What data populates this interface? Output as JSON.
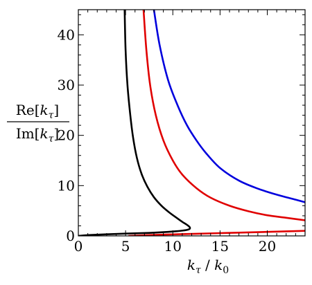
{
  "chart_data": {
    "type": "line",
    "xlabel": {
      "main": "k",
      "sub": "τ",
      "sep": " / ",
      "main2": "k",
      "sub2": "0"
    },
    "ylabel": {
      "num_pre": "Re[",
      "num_main": "k",
      "num_sub": "τ",
      "num_post": "]",
      "den_pre": "Im[",
      "den_main": "k",
      "den_sub": "τ",
      "den_post": "]"
    },
    "xlim": [
      0,
      24
    ],
    "ylim": [
      0,
      45
    ],
    "xticks": [
      0,
      5,
      10,
      15,
      20
    ],
    "yticks": [
      0,
      10,
      20,
      30,
      40
    ],
    "xtick_labels": [
      "0",
      "5",
      "10",
      "15",
      "20"
    ],
    "ytick_labels": [
      "0",
      "10",
      "20",
      "30",
      "40"
    ],
    "grid": false,
    "series": [
      {
        "color": "#000000",
        "x": [
          4.9,
          5.0,
          5.2,
          5.5,
          5.8,
          6.2,
          6.7,
          7.3,
          8.0,
          8.8,
          9.6,
          10.4,
          11.0,
          11.5,
          11.8,
          11.7,
          11.0,
          9.5,
          7.5,
          5.0,
          3.0,
          1.5,
          0.5,
          0.0
        ],
        "y": [
          45,
          37,
          30,
          24,
          19.5,
          15.5,
          12.3,
          9.8,
          7.7,
          6.0,
          4.7,
          3.6,
          2.8,
          2.2,
          1.7,
          1.3,
          1.05,
          0.8,
          0.6,
          0.45,
          0.32,
          0.2,
          0.08,
          0.0
        ]
      },
      {
        "color": "#e00000",
        "x": [
          6.9,
          7.2,
          7.6,
          8.2,
          9.0,
          10.0,
          11.0,
          12.5,
          14.0,
          16.0,
          18.0,
          20.0,
          22.0,
          24.0
        ],
        "y": [
          45,
          37,
          30,
          24,
          19.0,
          15.0,
          12.2,
          9.5,
          7.6,
          6.0,
          4.9,
          4.1,
          3.6,
          3.1
        ]
      },
      {
        "color": "#e00000",
        "x": [
          5.3,
          8.0,
          11.0,
          14.0,
          17.0,
          20.0,
          22.0,
          24.0
        ],
        "y": [
          0.0,
          0.2,
          0.35,
          0.5,
          0.65,
          0.8,
          0.9,
          1.0
        ]
      },
      {
        "color": "#0000dd",
        "x": [
          8.0,
          8.6,
          9.5,
          10.5,
          11.5,
          12.5,
          13.5,
          15.0,
          17.0,
          19.0,
          21.0,
          23.0,
          24.0
        ],
        "y": [
          45,
          38,
          31,
          26,
          22.0,
          19.0,
          16.5,
          13.5,
          11.0,
          9.4,
          8.2,
          7.2,
          6.7
        ]
      }
    ]
  }
}
